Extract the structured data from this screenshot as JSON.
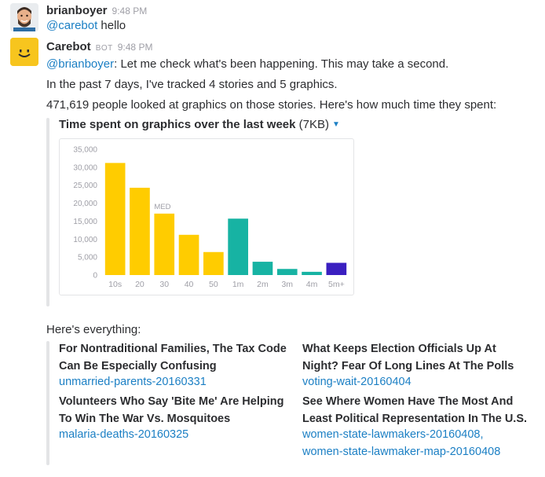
{
  "messages": {
    "m1": {
      "author": "brianboyer",
      "time": "9:48 PM",
      "mention": "@carebot",
      "text": " hello"
    },
    "m2": {
      "author": "Carebot",
      "badge": "BOT",
      "time": "9:48 PM",
      "mention": "@brianboyer",
      "line1_rest": ": Let me check what's been happening. This may take a second.",
      "line2": "In the past 7 days, I've tracked 4 stories and 5 graphics.",
      "line3": "471,619 people looked at graphics on those stories. Here's how much time they spent:",
      "attachment_title": "Time spent on graphics over the last week",
      "attachment_size": "(7KB)",
      "everything_label": "Here's everything:"
    }
  },
  "chart_data": {
    "type": "bar",
    "categories": [
      "10s",
      "20",
      "30",
      "40",
      "50",
      "1m",
      "2m",
      "3m",
      "4m",
      "5m+"
    ],
    "values": [
      31200,
      24300,
      17100,
      11200,
      6400,
      15700,
      3700,
      1700,
      900,
      3400
    ],
    "colors": [
      "#ffcc00",
      "#ffcc00",
      "#ffcc00",
      "#ffcc00",
      "#ffcc00",
      "#17b3a3",
      "#17b3a3",
      "#17b3a3",
      "#17b3a3",
      "#3a1fc0"
    ],
    "yticks": [
      "0",
      "5,000",
      "10,000",
      "15,000",
      "20,000",
      "25,000",
      "30,000",
      "35,000"
    ],
    "ylim": [
      0,
      35000
    ],
    "annotation": "MED",
    "grid": false
  },
  "stories": [
    {
      "title": "For Nontraditional Families, The Tax Code Can Be Especially Confusing",
      "links": [
        "unmarried-parents-20160331"
      ]
    },
    {
      "title": "What Keeps Election Officials Up At Night? Fear Of Long Lines At The Polls",
      "links": [
        "voting-wait-20160404"
      ]
    },
    {
      "title": "Volunteers Who Say 'Bite Me' Are Helping To Win The War Vs. Mosquitoes",
      "links": [
        "malaria-deaths-20160325"
      ]
    },
    {
      "title": "See Where Women Have The Most And Least Political Representation In The U.S.",
      "links": [
        "women-state-lawmakers-20160408,",
        "women-state-lawmaker-map-20160408"
      ]
    }
  ],
  "colors": {
    "link": "#1b7fc4",
    "bot_avatar": "#f7c51e"
  }
}
